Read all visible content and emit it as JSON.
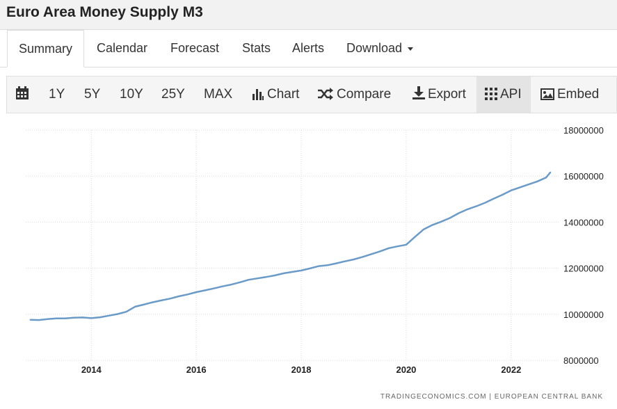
{
  "page": {
    "title": "Euro Area Money Supply M3"
  },
  "tabs": [
    {
      "label": "Summary",
      "active": true
    },
    {
      "label": "Calendar"
    },
    {
      "label": "Forecast"
    },
    {
      "label": "Stats"
    },
    {
      "label": "Alerts"
    },
    {
      "label": "Download"
    }
  ],
  "toolbar": {
    "calendar_icon": "calendar-icon",
    "ranges": [
      "1Y",
      "5Y",
      "10Y",
      "25Y",
      "MAX"
    ],
    "chart_label": "Chart",
    "compare_label": "Compare",
    "export_label": "Export",
    "api_label": "API",
    "embed_label": "Embed"
  },
  "credit": {
    "source": "TRADINGECONOMICS.COM | EUROPEAN CENTRAL BANK"
  },
  "colors": {
    "line": "#6a9ac8",
    "grid": "#dcdcdc"
  },
  "chart_data": {
    "type": "line",
    "title": "",
    "xlabel": "",
    "ylabel": "",
    "ylim": [
      8000000,
      18000000
    ],
    "yticks": [
      8000000,
      10000000,
      12000000,
      14000000,
      16000000,
      18000000
    ],
    "xticks": [
      "2014",
      "2016",
      "2018",
      "2020",
      "2022"
    ],
    "xlim": [
      "2012-10",
      "2022-12"
    ],
    "grid": true,
    "series": [
      {
        "points": [
          [
            "2012-11",
            9760000
          ],
          [
            "2013-01",
            9750000
          ],
          [
            "2013-03",
            9790000
          ],
          [
            "2013-05",
            9820000
          ],
          [
            "2013-07",
            9820000
          ],
          [
            "2013-09",
            9850000
          ],
          [
            "2013-11",
            9860000
          ],
          [
            "2014-01",
            9830000
          ],
          [
            "2014-03",
            9870000
          ],
          [
            "2014-05",
            9940000
          ],
          [
            "2014-07",
            10010000
          ],
          [
            "2014-09",
            10110000
          ],
          [
            "2014-11",
            10330000
          ],
          [
            "2015-01",
            10420000
          ],
          [
            "2015-03",
            10520000
          ],
          [
            "2015-05",
            10600000
          ],
          [
            "2015-07",
            10680000
          ],
          [
            "2015-09",
            10780000
          ],
          [
            "2015-11",
            10860000
          ],
          [
            "2016-01",
            10960000
          ],
          [
            "2016-03",
            11040000
          ],
          [
            "2016-05",
            11120000
          ],
          [
            "2016-07",
            11210000
          ],
          [
            "2016-09",
            11290000
          ],
          [
            "2016-11",
            11390000
          ],
          [
            "2017-01",
            11500000
          ],
          [
            "2017-03",
            11560000
          ],
          [
            "2017-05",
            11620000
          ],
          [
            "2017-07",
            11690000
          ],
          [
            "2017-09",
            11780000
          ],
          [
            "2017-11",
            11840000
          ],
          [
            "2018-01",
            11900000
          ],
          [
            "2018-03",
            11990000
          ],
          [
            "2018-05",
            12090000
          ],
          [
            "2018-07",
            12130000
          ],
          [
            "2018-09",
            12210000
          ],
          [
            "2018-11",
            12300000
          ],
          [
            "2019-01",
            12380000
          ],
          [
            "2019-03",
            12490000
          ],
          [
            "2019-05",
            12610000
          ],
          [
            "2019-07",
            12730000
          ],
          [
            "2019-09",
            12870000
          ],
          [
            "2019-11",
            12950000
          ],
          [
            "2020-01",
            13020000
          ],
          [
            "2020-03",
            13360000
          ],
          [
            "2020-05",
            13690000
          ],
          [
            "2020-07",
            13880000
          ],
          [
            "2020-09",
            14020000
          ],
          [
            "2020-11",
            14180000
          ],
          [
            "2021-01",
            14390000
          ],
          [
            "2021-03",
            14560000
          ],
          [
            "2021-05",
            14690000
          ],
          [
            "2021-07",
            14840000
          ],
          [
            "2021-09",
            15020000
          ],
          [
            "2021-11",
            15190000
          ],
          [
            "2022-01",
            15380000
          ],
          [
            "2022-03",
            15510000
          ],
          [
            "2022-05",
            15640000
          ],
          [
            "2022-07",
            15770000
          ],
          [
            "2022-09",
            15940000
          ],
          [
            "2022-10",
            16170000
          ]
        ]
      }
    ]
  }
}
